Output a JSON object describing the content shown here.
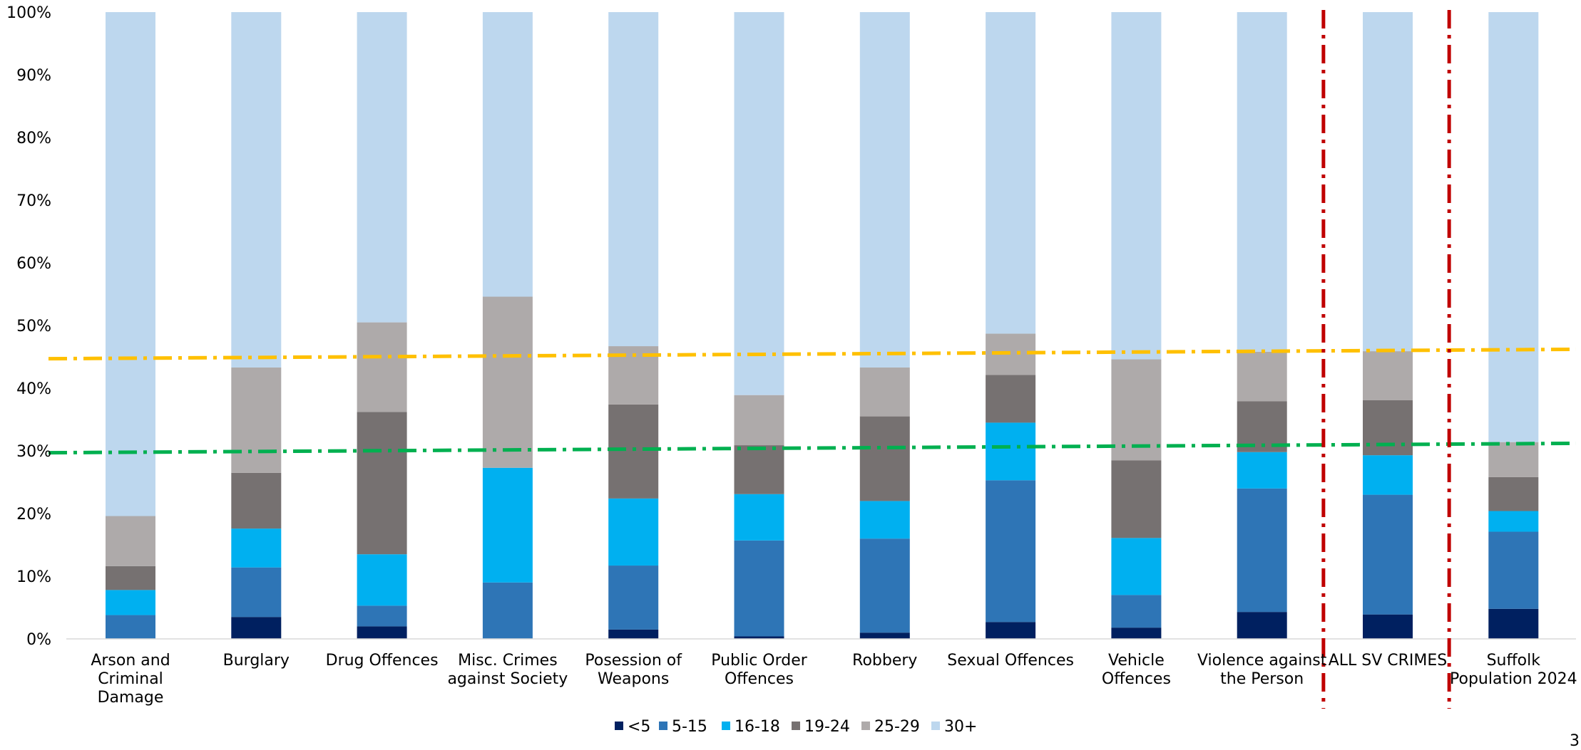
{
  "chart_data": {
    "type": "bar",
    "stacked": true,
    "ylim": [
      0,
      100
    ],
    "yticks": [
      "0%",
      "10%",
      "20%",
      "30%",
      "40%",
      "50%",
      "60%",
      "70%",
      "80%",
      "90%",
      "100%"
    ],
    "categories": [
      [
        "Arson and",
        "Criminal",
        "Damage"
      ],
      [
        "Burglary"
      ],
      [
        "Drug Offences"
      ],
      [
        "Misc. Crimes",
        "against Society"
      ],
      [
        "Posession of",
        "Weapons"
      ],
      [
        "Public Order",
        "Offences"
      ],
      [
        "Robbery"
      ],
      [
        "Sexual Offences"
      ],
      [
        "Vehicle",
        "Offences"
      ],
      [
        "Violence against",
        "the Person"
      ],
      [
        "ALL SV CRIMES"
      ],
      [
        "Suffolk",
        "Population 2024"
      ]
    ],
    "series": [
      {
        "name": "<5",
        "color": "#002060",
        "values": [
          0.0,
          3.5,
          2.0,
          0.0,
          1.5,
          0.4,
          1.0,
          2.7,
          1.8,
          4.3,
          3.9,
          4.8
        ]
      },
      {
        "name": "5-15",
        "color": "#2E75B6",
        "values": [
          3.8,
          7.9,
          3.3,
          9.0,
          10.2,
          15.3,
          15.0,
          22.6,
          5.2,
          19.7,
          19.1,
          12.3
        ]
      },
      {
        "name": "16-18",
        "color": "#00B0F0",
        "values": [
          4.0,
          6.2,
          8.2,
          18.3,
          10.7,
          7.4,
          6.0,
          9.2,
          9.1,
          5.8,
          6.3,
          3.3
        ]
      },
      {
        "name": "19-24",
        "color": "#767171",
        "values": [
          3.8,
          8.9,
          22.7,
          0.0,
          15.0,
          7.8,
          13.5,
          7.6,
          12.4,
          8.1,
          8.8,
          5.4
        ]
      },
      {
        "name": "25-29",
        "color": "#AEAAAA",
        "values": [
          8.0,
          16.8,
          14.3,
          27.3,
          9.3,
          8.0,
          7.8,
          6.6,
          16.1,
          7.9,
          7.8,
          5.6
        ]
      },
      {
        "name": "30+",
        "color": "#BDD7EE",
        "values": [
          80.4,
          56.7,
          49.5,
          45.4,
          53.3,
          61.1,
          56.7,
          51.3,
          55.4,
          54.2,
          54.1,
          68.6
        ]
      }
    ],
    "reference_lines": [
      {
        "color": "#FFC000",
        "from": 44.7,
        "to": 46.2
      },
      {
        "color": "#00B050",
        "from": 29.7,
        "to": 31.2
      }
    ],
    "separators_after": [
      9,
      10
    ],
    "separator_color": "#C00000",
    "legend_position": "bottom"
  },
  "page_number": "3"
}
